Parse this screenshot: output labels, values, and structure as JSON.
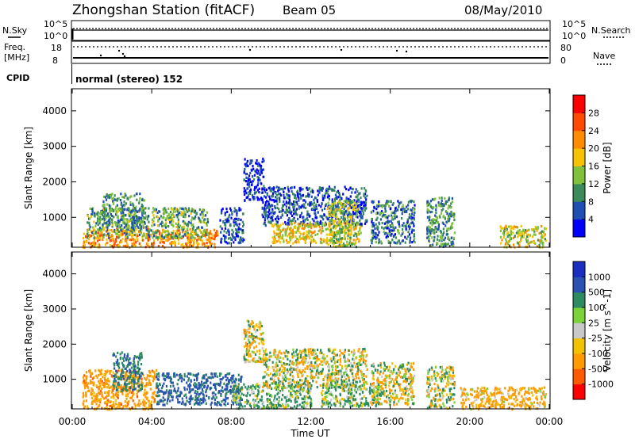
{
  "header": {
    "title": "Zhongshan Station (fitACF)",
    "beam": "Beam 05",
    "date": "08/May/2010"
  },
  "param_panel": {
    "nsky_label": "N.Sky",
    "nsky_tick_top": "10^5",
    "nsky_tick_bottom": "10^0",
    "nsearch_label": "N.Search",
    "nsearch_tick_top": "10^5",
    "nsearch_tick_bottom": "10^0",
    "freq_label": "Freq.",
    "freq_unit": "[MHz]",
    "freq_tick_top": "18",
    "freq_tick_bottom": "8",
    "nave_label": "Nave",
    "nave_tick_top": "80",
    "nave_tick_bottom": "0",
    "cpid_label": "CPID",
    "cpid_value": "normal (stereo) 152"
  },
  "colors": {
    "power_scale": [
      "#0000ff",
      "#1f4fb3",
      "#3a8a5a",
      "#7fc13a",
      "#f7c300",
      "#ff8c00",
      "#ff4a00",
      "#ff0000"
    ],
    "velocity_scale": [
      "#ff0000",
      "#ff5a00",
      "#ff9a00",
      "#f2c100",
      "#c8c8c8",
      "#7cd23a",
      "#2e8a60",
      "#2a52b0",
      "#1a2fc0"
    ]
  },
  "chart_data": [
    {
      "type": "heatmap",
      "title": "Power",
      "xlabel": "Time UT",
      "ylabel": "Slant Range [km]",
      "x_tick_labels": [
        "00:00",
        "04:00",
        "08:00",
        "12:00",
        "16:00",
        "20:00",
        "00:00"
      ],
      "xlim": [
        0,
        24
      ],
      "y_ticks": [
        1000,
        2000,
        3000,
        4000
      ],
      "ylim": [
        180,
        4600
      ],
      "colorbar": {
        "label": "Power [dB]",
        "ticks": [
          4,
          8,
          12,
          16,
          20,
          24,
          28
        ],
        "range": [
          0,
          32
        ]
      },
      "blobs": [
        {
          "t0": 0.5,
          "t1": 7.3,
          "r0": 180,
          "r1": 700,
          "value": 22
        },
        {
          "t0": 0.7,
          "t1": 6.8,
          "r0": 450,
          "r1": 1300,
          "value": 12
        },
        {
          "t0": 1.5,
          "t1": 3.6,
          "r0": 700,
          "r1": 1700,
          "value": 10
        },
        {
          "t0": 7.4,
          "t1": 8.6,
          "r0": 300,
          "r1": 1300,
          "value": 6
        },
        {
          "t0": 8.6,
          "t1": 9.6,
          "r0": 1500,
          "r1": 2700,
          "value": 4
        },
        {
          "t0": 9.5,
          "t1": 14.8,
          "r0": 800,
          "r1": 1900,
          "value": 6
        },
        {
          "t0": 10.0,
          "t1": 14.5,
          "r0": 300,
          "r1": 900,
          "value": 18
        },
        {
          "t0": 12.8,
          "t1": 14.3,
          "r0": 200,
          "r1": 1500,
          "value": 14
        },
        {
          "t0": 15.0,
          "t1": 17.2,
          "r0": 300,
          "r1": 1500,
          "value": 8
        },
        {
          "t0": 17.8,
          "t1": 19.2,
          "r0": 200,
          "r1": 1600,
          "value": 10
        },
        {
          "t0": 21.5,
          "t1": 23.8,
          "r0": 180,
          "r1": 800,
          "value": 16
        }
      ]
    },
    {
      "type": "heatmap",
      "title": "Velocity",
      "xlabel": "Time UT",
      "ylabel": "Slant Range [km]",
      "x_tick_labels": [
        "00:00",
        "04:00",
        "08:00",
        "12:00",
        "16:00",
        "20:00",
        "00:00"
      ],
      "xlim": [
        0,
        24
      ],
      "y_ticks": [
        1000,
        2000,
        3000,
        4000
      ],
      "ylim": [
        180,
        4600
      ],
      "colorbar": {
        "label": "Velocity [m s^-1]",
        "ticks": [
          1000,
          500,
          100,
          25,
          -25,
          -100,
          -500,
          -1000
        ]
      },
      "blobs": [
        {
          "t0": 0.5,
          "t1": 4.2,
          "r0": 180,
          "r1": 1300,
          "value": -300
        },
        {
          "t0": 2.0,
          "t1": 3.5,
          "r0": 700,
          "r1": 1800,
          "value": 400
        },
        {
          "t0": 4.2,
          "t1": 8.5,
          "r0": 300,
          "r1": 1200,
          "value": 600
        },
        {
          "t0": 8.0,
          "t1": 12.0,
          "r0": 200,
          "r1": 900,
          "value": 150
        },
        {
          "t0": 8.6,
          "t1": 9.6,
          "r0": 1500,
          "r1": 2700,
          "value": -60
        },
        {
          "t0": 9.5,
          "t1": 14.8,
          "r0": 800,
          "r1": 1900,
          "value": 0
        },
        {
          "t0": 12.5,
          "t1": 15.5,
          "r0": 250,
          "r1": 900,
          "value": 120
        },
        {
          "t0": 15.0,
          "t1": 17.2,
          "r0": 300,
          "r1": 1500,
          "value": 0
        },
        {
          "t0": 17.8,
          "t1": 19.2,
          "r0": 200,
          "r1": 1400,
          "value": 0
        },
        {
          "t0": 19.5,
          "t1": 23.8,
          "r0": 180,
          "r1": 800,
          "value": -200
        }
      ]
    }
  ]
}
